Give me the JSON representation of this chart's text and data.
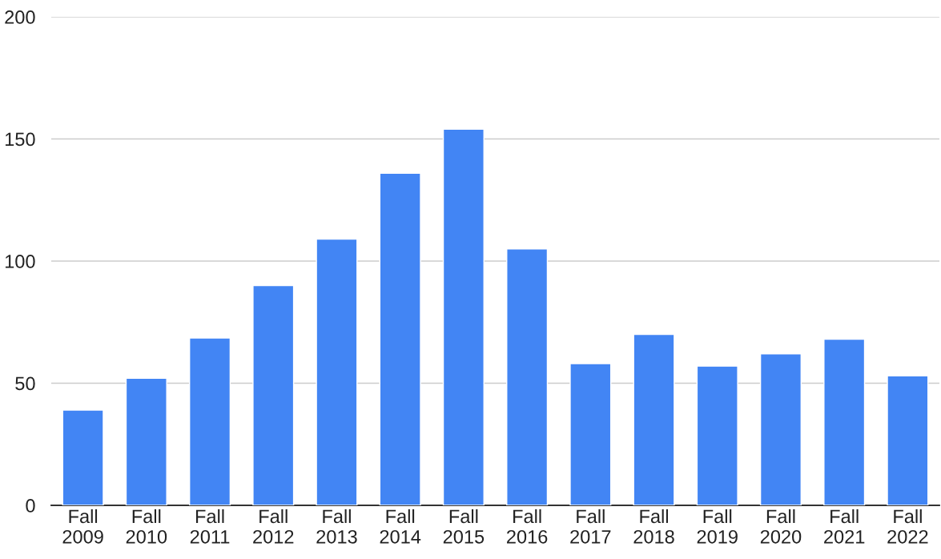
{
  "chart_data": {
    "type": "bar",
    "categories": [
      "Fall\n2009",
      "Fall\n2010",
      "Fall\n2011",
      "Fall\n2012",
      "Fall\n2013",
      "Fall\n2014",
      "Fall\n2015",
      "Fall\n2016",
      "Fall\n2017",
      "Fall\n2018",
      "Fall\n2019",
      "Fall\n2020",
      "Fall\n2021",
      "Fall\n2022"
    ],
    "values": [
      39,
      52,
      68.5,
      90,
      109,
      136,
      154,
      105,
      58,
      70,
      57,
      62,
      68,
      53
    ],
    "color": "#4285f4",
    "ylim": [
      0,
      200
    ],
    "yticks": [
      0,
      50,
      100,
      150,
      200
    ],
    "grid": "y",
    "legend": false
  }
}
